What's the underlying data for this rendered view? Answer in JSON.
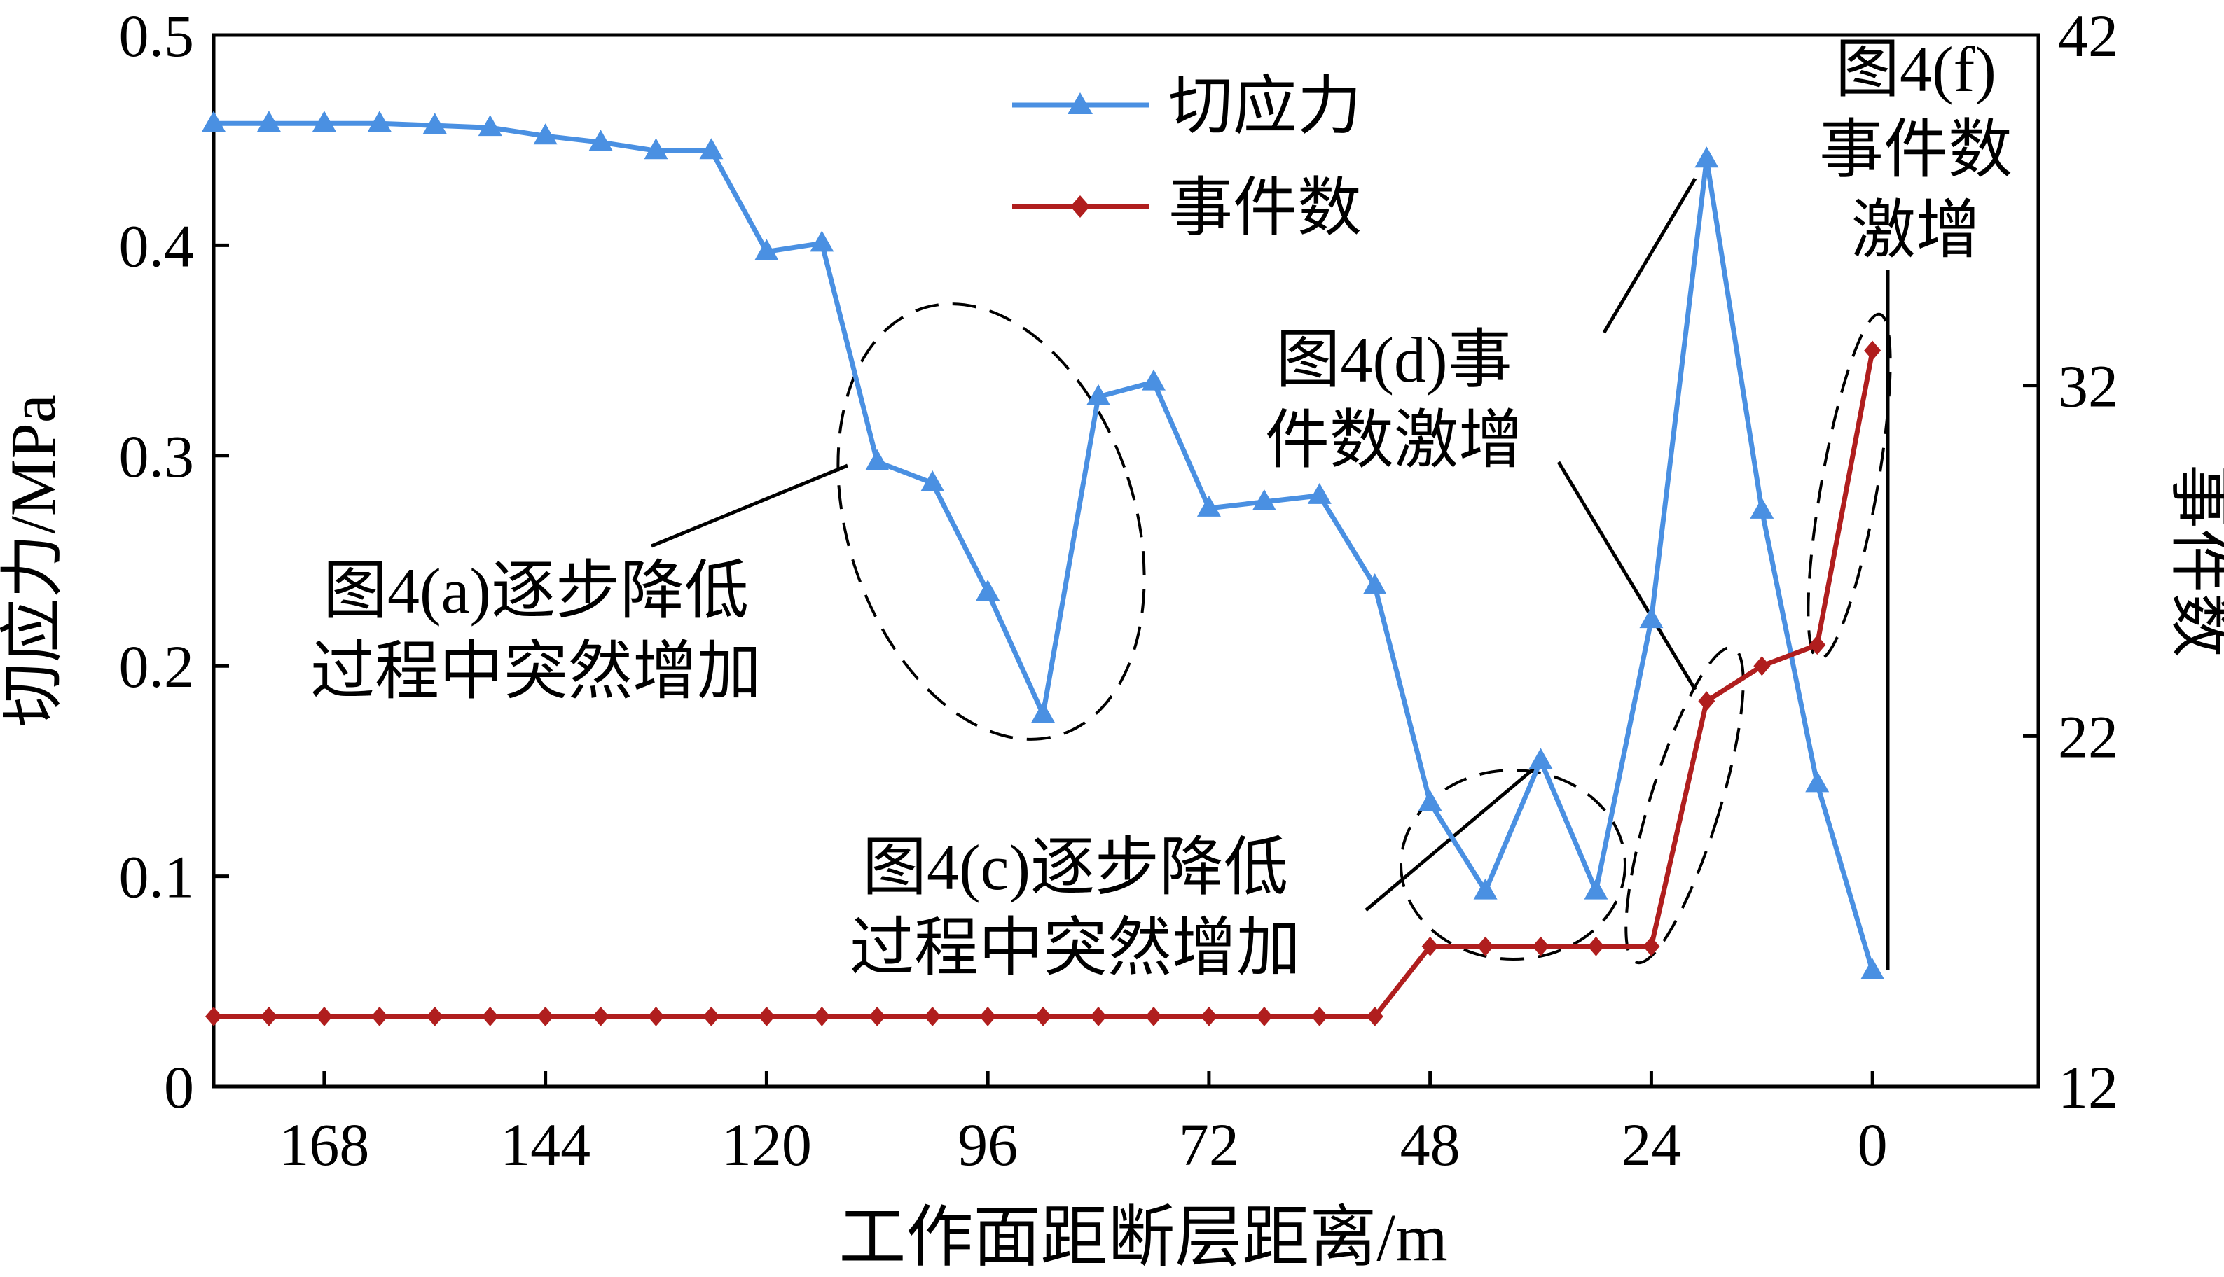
{
  "chart_data": {
    "type": "line",
    "title": "",
    "xlabel": "工作面距断层距离/m",
    "ylabel": "切应力/MPa",
    "y2label": "事件数",
    "x_direction": "reversed",
    "xlim": [
      180,
      -18
    ],
    "ylim": [
      0,
      0.5
    ],
    "y2lim": [
      12,
      42
    ],
    "xticks": [
      "168",
      "144",
      "120",
      "96",
      "72",
      "48",
      "24",
      "0"
    ],
    "xtick_values": [
      168,
      144,
      120,
      96,
      72,
      48,
      24,
      0
    ],
    "yticks": [
      "0",
      "0.1",
      "0.2",
      "0.3",
      "0.4",
      "0.5"
    ],
    "ytick_values": [
      0,
      0.1,
      0.2,
      0.3,
      0.4,
      0.5
    ],
    "y2ticks": [
      "12",
      "22",
      "32",
      "42"
    ],
    "y2tick_values": [
      12,
      22,
      32,
      42
    ],
    "grid": false,
    "legend_position": "top-center",
    "series": [
      {
        "name": "切应力",
        "axis": "left",
        "color": "#4a90e2",
        "marker": "triangle",
        "x": [
          180,
          174,
          168,
          162,
          156,
          150,
          144,
          138,
          132,
          126,
          120,
          114,
          108,
          102,
          96,
          90,
          84,
          78,
          72,
          66,
          60,
          54,
          48,
          42,
          36,
          30,
          24,
          18,
          12,
          6,
          0
        ],
        "y": [
          0.458,
          0.458,
          0.458,
          0.458,
          0.457,
          0.456,
          0.452,
          0.449,
          0.445,
          0.445,
          0.397,
          0.401,
          0.297,
          0.287,
          0.235,
          0.177,
          0.328,
          0.335,
          0.275,
          0.278,
          0.281,
          0.238,
          0.135,
          0.093,
          0.155,
          0.093,
          0.222,
          0.441,
          0.274,
          0.144,
          0.055
        ]
      },
      {
        "name": "事件数",
        "axis": "right",
        "color": "#b01e1e",
        "marker": "diamond",
        "x": [
          180,
          174,
          168,
          162,
          156,
          150,
          144,
          138,
          132,
          126,
          120,
          114,
          108,
          102,
          96,
          90,
          84,
          78,
          72,
          66,
          60,
          54,
          48,
          42,
          36,
          30,
          24,
          18,
          12,
          6,
          0
        ],
        "y": [
          14,
          14,
          14,
          14,
          14,
          14,
          14,
          14,
          14,
          14,
          14,
          14,
          14,
          14,
          14,
          14,
          14,
          14,
          14,
          14,
          14,
          14,
          16,
          16,
          16,
          16,
          16,
          23,
          24,
          24.6,
          33
        ]
      }
    ],
    "annotations": [
      {
        "lines": [
          "图4(a)逐步降低",
          "过程中突然增加"
        ]
      },
      {
        "lines": [
          "图4(c)逐步降低",
          "过程中突然增加"
        ]
      },
      {
        "lines": [
          "图4(d)事",
          "件数激增"
        ]
      },
      {
        "lines": [
          "图4(f)",
          "事件数",
          "激增"
        ]
      }
    ]
  }
}
